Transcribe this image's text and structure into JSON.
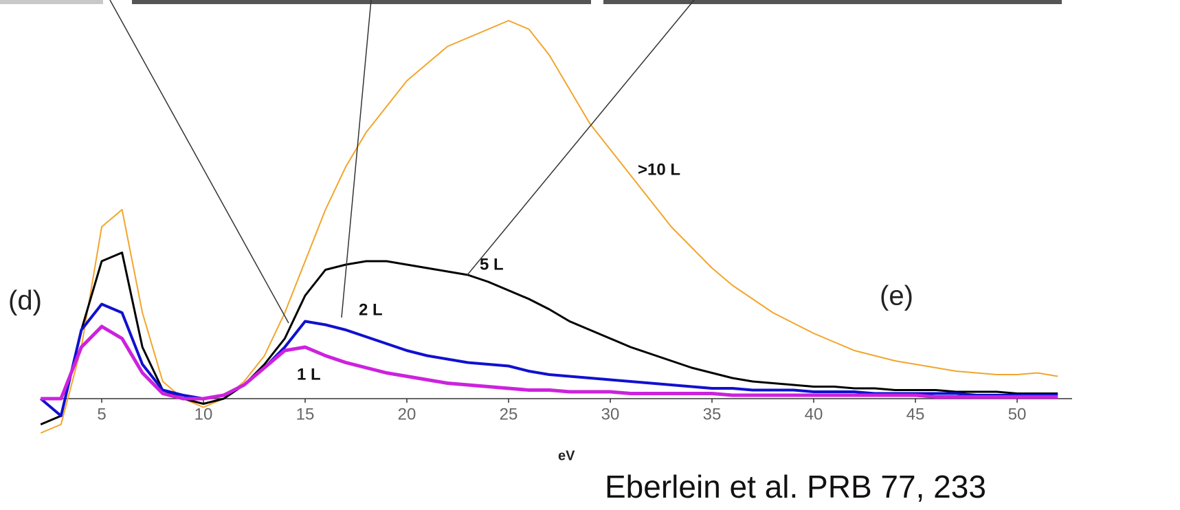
{
  "chart_data": {
    "type": "line",
    "x_label": "eV",
    "annotations": [
      "(d)",
      "(e)"
    ],
    "citation": "Eberlein et al. PRB 77, 233",
    "x": [
      2,
      3,
      4,
      5,
      6,
      7,
      8,
      9,
      10,
      11,
      12,
      13,
      14,
      15,
      16,
      17,
      18,
      19,
      20,
      21,
      22,
      23,
      24,
      25,
      26,
      27,
      28,
      29,
      30,
      31,
      32,
      33,
      34,
      35,
      36,
      37,
      38,
      39,
      40,
      41,
      42,
      43,
      44,
      45,
      46,
      47,
      48,
      49,
      50,
      51,
      52
    ],
    "series": [
      {
        "name": ">10 L",
        "color": "#f2a52b",
        "values": [
          -2,
          -1.5,
          3,
          10,
          11,
          5,
          1,
          0,
          -0.5,
          0,
          1,
          2.5,
          5,
          8,
          11,
          13.5,
          15.5,
          17,
          18.5,
          19.5,
          20.5,
          21,
          21.5,
          22,
          21.5,
          20,
          18,
          16,
          14.5,
          13,
          11.5,
          10,
          8.8,
          7.6,
          6.6,
          5.8,
          5,
          4.4,
          3.8,
          3.3,
          2.8,
          2.5,
          2.2,
          2,
          1.8,
          1.6,
          1.5,
          1.4,
          1.4,
          1.5,
          1.3
        ]
      },
      {
        "name": "5 L",
        "color": "#000000",
        "values": [
          -1.5,
          -1,
          4,
          8,
          8.5,
          3,
          0.5,
          0,
          -0.3,
          0,
          0.8,
          2,
          3.5,
          6,
          7.5,
          7.8,
          8,
          8,
          7.8,
          7.6,
          7.4,
          7.2,
          6.8,
          6.3,
          5.8,
          5.2,
          4.5,
          4,
          3.5,
          3,
          2.6,
          2.2,
          1.8,
          1.5,
          1.2,
          1,
          0.9,
          0.8,
          0.7,
          0.7,
          0.6,
          0.6,
          0.5,
          0.5,
          0.5,
          0.4,
          0.4,
          0.4,
          0.3,
          0.3,
          0.3
        ]
      },
      {
        "name": "2 L",
        "color": "#1010d0",
        "values": [
          0,
          -1,
          4,
          5.5,
          5,
          2,
          0.5,
          0.2,
          0,
          0.2,
          0.8,
          1.8,
          3,
          4.5,
          4.3,
          4,
          3.6,
          3.2,
          2.8,
          2.5,
          2.3,
          2.1,
          2,
          1.9,
          1.6,
          1.4,
          1.3,
          1.2,
          1.1,
          1,
          0.9,
          0.8,
          0.7,
          0.6,
          0.6,
          0.5,
          0.5,
          0.5,
          0.4,
          0.4,
          0.4,
          0.3,
          0.3,
          0.3,
          0.3,
          0.3,
          0.2,
          0.2,
          0.2,
          0.2,
          0.2
        ]
      },
      {
        "name": "1 L",
        "color": "#cc22dd",
        "values": [
          0,
          0,
          3,
          4.2,
          3.5,
          1.5,
          0.3,
          0,
          0,
          0.2,
          0.8,
          1.8,
          2.8,
          3,
          2.5,
          2.1,
          1.8,
          1.5,
          1.3,
          1.1,
          0.9,
          0.8,
          0.7,
          0.6,
          0.5,
          0.5,
          0.4,
          0.4,
          0.4,
          0.3,
          0.3,
          0.3,
          0.3,
          0.3,
          0.2,
          0.2,
          0.2,
          0.2,
          0.2,
          0.2,
          0.2,
          0.2,
          0.2,
          0.2,
          0.1,
          0.1,
          0.1,
          0.1,
          0.1,
          0.1,
          0.1
        ]
      }
    ],
    "xlim": [
      0,
      53
    ],
    "ylim": [
      -3,
      23
    ],
    "xticks": [
      5,
      10,
      15,
      20,
      25,
      30,
      35,
      40,
      45,
      50
    ]
  }
}
